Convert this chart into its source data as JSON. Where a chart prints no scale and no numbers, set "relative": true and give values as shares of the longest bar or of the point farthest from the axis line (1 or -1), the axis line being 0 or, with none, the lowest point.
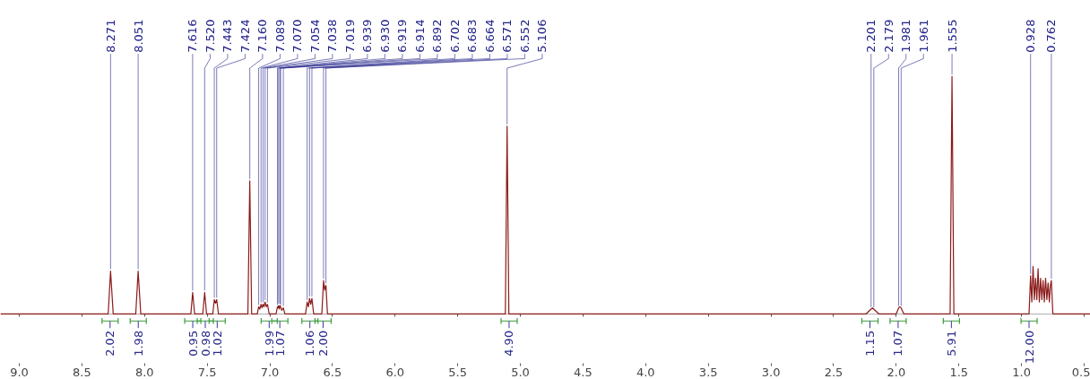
{
  "chart_data": {
    "type": "line",
    "relative": true,
    "color": "#8b1a1a",
    "grid": false,
    "x": [
      9.15,
      8.29,
      8.271,
      8.25,
      8.07,
      8.051,
      8.03,
      7.63,
      7.616,
      7.6,
      7.535,
      7.52,
      7.505,
      7.455,
      7.443,
      7.433,
      7.424,
      7.41,
      7.175,
      7.16,
      7.145,
      7.1,
      7.089,
      7.08,
      7.07,
      7.062,
      7.054,
      7.046,
      7.038,
      7.028,
      7.019,
      7.005,
      6.95,
      6.939,
      6.934,
      6.93,
      6.924,
      6.919,
      6.914,
      6.905,
      6.892,
      6.88,
      6.715,
      6.702,
      6.692,
      6.683,
      6.673,
      6.664,
      6.65,
      6.585,
      6.571,
      6.562,
      6.552,
      6.54,
      5.12,
      5.106,
      5.092,
      2.24,
      2.201,
      2.19,
      2.179,
      2.14,
      2.0,
      1.981,
      1.971,
      1.961,
      1.94,
      1.57,
      1.555,
      1.54,
      0.94,
      0.928,
      0.918,
      0.908,
      0.898,
      0.888,
      0.878,
      0.868,
      0.858,
      0.848,
      0.838,
      0.828,
      0.818,
      0.808,
      0.798,
      0.788,
      0.778,
      0.77,
      0.762,
      0.75,
      0.45
    ],
    "values": [
      0,
      0,
      0.18,
      0,
      0,
      0.18,
      0,
      0,
      0.09,
      0,
      0,
      0.09,
      0,
      0,
      0.06,
      0.045,
      0.06,
      0,
      0,
      0.56,
      0,
      0,
      0.03,
      0.02,
      0.04,
      0.025,
      0.04,
      0.03,
      0.05,
      0.03,
      0.04,
      0,
      0,
      0.03,
      0.025,
      0.035,
      0.02,
      0.035,
      0.03,
      0.015,
      0.025,
      0,
      0,
      0.05,
      0.03,
      0.065,
      0.04,
      0.065,
      0,
      0,
      0.14,
      0.1,
      0.12,
      0,
      0,
      0.79,
      0,
      0,
      0.02,
      0.025,
      0.02,
      0,
      0,
      0.025,
      0.03,
      0.025,
      0,
      0,
      1.0,
      0,
      0,
      0.16,
      0.05,
      0.2,
      0.06,
      0.15,
      0.06,
      0.19,
      0.05,
      0.15,
      0.06,
      0.14,
      0.05,
      0.15,
      0.06,
      0.13,
      0.05,
      0.12,
      0.14,
      0,
      0
    ],
    "xlim": [
      9.15,
      0.45
    ],
    "xticks": [
      {
        "value": 9,
        "label": "9.0"
      },
      {
        "value": 8.5,
        "label": "8.5"
      },
      {
        "value": 8,
        "label": "8.0"
      },
      {
        "value": 7.5,
        "label": "7.5"
      },
      {
        "value": 7,
        "label": "7.0"
      },
      {
        "value": 6.5,
        "label": "6.5"
      },
      {
        "value": 6,
        "label": "6.0"
      },
      {
        "value": 5.5,
        "label": "5.5"
      },
      {
        "value": 5,
        "label": "5.0"
      },
      {
        "value": 4.5,
        "label": "4.5"
      },
      {
        "value": 4,
        "label": "4.0"
      },
      {
        "value": 3.5,
        "label": "3.5"
      },
      {
        "value": 3,
        "label": "3.0"
      },
      {
        "value": 2.5,
        "label": "2.5"
      },
      {
        "value": 2,
        "label": "2.0"
      },
      {
        "value": 1.5,
        "label": "1.5"
      },
      {
        "value": 1,
        "label": "1.0"
      },
      {
        "value": 0.5,
        "label": "0.5"
      }
    ],
    "annotations": [
      {
        "text": "8.271",
        "x": 8.271,
        "y": 0.18
      },
      {
        "text": "8.051",
        "x": 8.051,
        "y": 0.18
      },
      {
        "text": "7.616",
        "x": 7.616,
        "y": 0.09
      },
      {
        "text": "7.520",
        "x": 7.52,
        "y": 0.09
      },
      {
        "text": "7.443",
        "x": 7.443,
        "y": 0.06
      },
      {
        "text": "7.424",
        "x": 7.424,
        "y": 0.06
      },
      {
        "text": "7.160",
        "x": 7.16,
        "y": 0.56
      },
      {
        "text": "7.089",
        "x": 7.089,
        "y": 0.03
      },
      {
        "text": "7.070",
        "x": 7.07,
        "y": 0.04
      },
      {
        "text": "7.054",
        "x": 7.054,
        "y": 0.04
      },
      {
        "text": "7.038",
        "x": 7.038,
        "y": 0.05
      },
      {
        "text": "7.019",
        "x": 7.019,
        "y": 0.04
      },
      {
        "text": "6.939",
        "x": 6.939,
        "y": 0.03
      },
      {
        "text": "6.930",
        "x": 6.93,
        "y": 0.035
      },
      {
        "text": "6.919",
        "x": 6.919,
        "y": 0.035
      },
      {
        "text": "6.914",
        "x": 6.914,
        "y": 0.03
      },
      {
        "text": "6.892",
        "x": 6.892,
        "y": 0.025
      },
      {
        "text": "6.702",
        "x": 6.702,
        "y": 0.05
      },
      {
        "text": "6.683",
        "x": 6.683,
        "y": 0.065
      },
      {
        "text": "6.664",
        "x": 6.664,
        "y": 0.065
      },
      {
        "text": "6.571",
        "x": 6.571,
        "y": 0.14
      },
      {
        "text": "6.552",
        "x": 6.552,
        "y": 0.12
      },
      {
        "text": "5.106",
        "x": 5.106,
        "y": 0.79
      },
      {
        "text": "2.201",
        "x": 2.201,
        "y": 0.02
      },
      {
        "text": "2.179",
        "x": 2.179,
        "y": 0.02
      },
      {
        "text": "1.981",
        "x": 1.981,
        "y": 0.025
      },
      {
        "text": "1.961",
        "x": 1.961,
        "y": 0.025
      },
      {
        "text": "1.555",
        "x": 1.555,
        "y": 1.0
      },
      {
        "text": "0.928",
        "x": 0.928,
        "y": 0.16
      },
      {
        "text": "0.762",
        "x": 0.762,
        "y": 0.14
      },
      {
        "text": "2.02",
        "x": 8.275,
        "y": 0
      },
      {
        "text": "1.98",
        "x": 8.05,
        "y": 0
      },
      {
        "text": "0.95",
        "x": 7.615,
        "y": 0
      },
      {
        "text": "0.98",
        "x": 7.515,
        "y": 0
      },
      {
        "text": "1.02",
        "x": 7.42,
        "y": 0
      },
      {
        "text": "1.99",
        "x": 7.005,
        "y": 0
      },
      {
        "text": "1.07",
        "x": 6.92,
        "y": 0
      },
      {
        "text": "1.06",
        "x": 6.68,
        "y": 0
      },
      {
        "text": "2.00",
        "x": 6.575,
        "y": 0
      },
      {
        "text": "4.90",
        "x": 5.09,
        "y": 0
      },
      {
        "text": "1.15",
        "x": 2.21,
        "y": 0
      },
      {
        "text": "1.07",
        "x": 1.985,
        "y": 0
      },
      {
        "text": "5.91",
        "x": 1.56,
        "y": 0
      },
      {
        "text": "12.00",
        "x": 0.94,
        "y": 0
      }
    ]
  }
}
